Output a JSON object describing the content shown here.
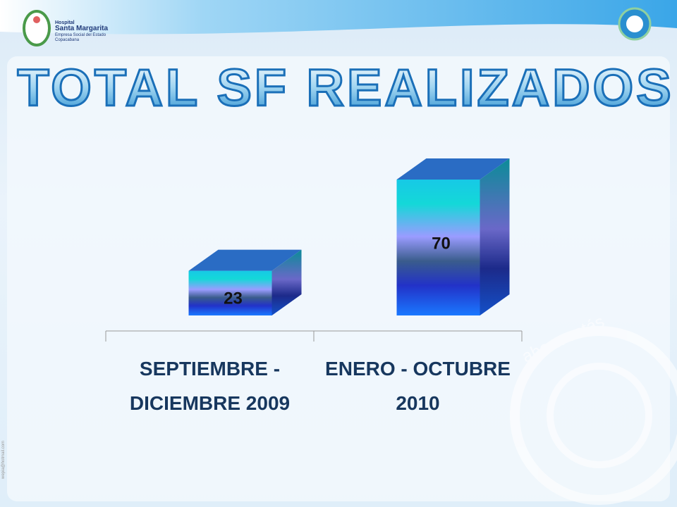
{
  "header": {
    "hospital": "Hospital",
    "name": "Santa Margarita",
    "subtitle": "Empresa Social del Estado",
    "city": "Copacabana"
  },
  "watermark": "ahora estás",
  "side_note": "wepia@hotmail.com",
  "chart_data": {
    "type": "bar3d",
    "title": "TOTAL SF REALIZADOS",
    "categories": [
      "SEPTIEMBRE - DICIEMBRE 2009",
      "ENERO - OCTUBRE 2010"
    ],
    "values": [
      23,
      70
    ]
  }
}
